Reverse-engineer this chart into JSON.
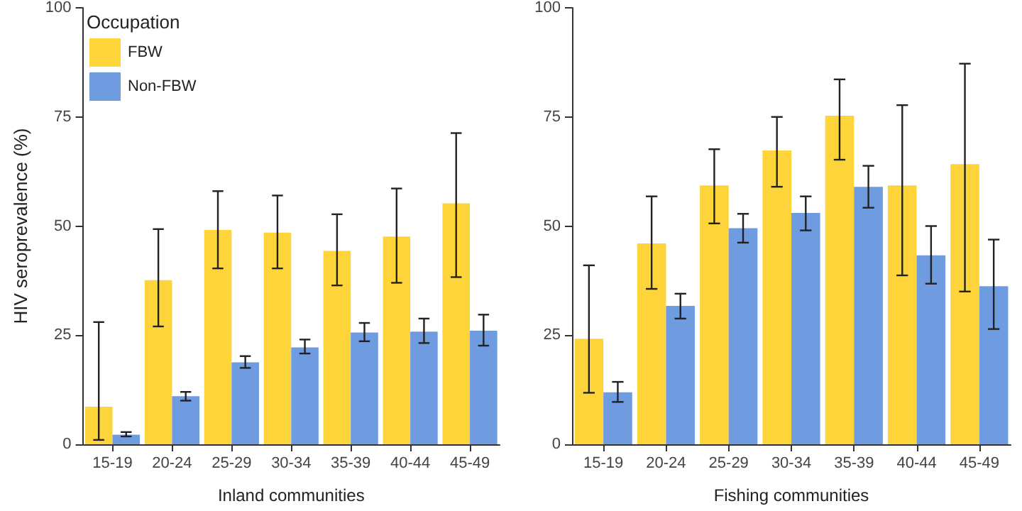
{
  "chart_data": [
    {
      "type": "bar",
      "xlabel": "Inland communities",
      "ylabel": "HIV seroprevalence (%)",
      "legend_title": "Occupation",
      "legend": "top left",
      "grid": false,
      "categories": [
        "15-19",
        "20-24",
        "25-29",
        "30-34",
        "35-39",
        "40-44",
        "45-49"
      ],
      "ylim": [
        0,
        100
      ],
      "yticks": [
        0,
        25,
        50,
        75,
        100
      ],
      "series": [
        {
          "name": "FBW",
          "color": "#fdd53a",
          "values": [
            8.6,
            37.6,
            49.1,
            48.5,
            44.3,
            47.6,
            55.2
          ],
          "errors": [
            [
              1,
              28
            ],
            [
              27,
              49.3
            ],
            [
              40.3,
              58
            ],
            [
              40.3,
              57
            ],
            [
              36.4,
              52.7
            ],
            [
              37,
              58.6
            ],
            [
              38.3,
              71.3
            ]
          ]
        },
        {
          "name": "Non-FBW",
          "color": "#6f9be0",
          "values": [
            2.2,
            11,
            18.8,
            22.2,
            25.6,
            25.8,
            26
          ],
          "errors": [
            [
              1.8,
              2.8
            ],
            [
              10,
              12
            ],
            [
              17.5,
              20.2
            ],
            [
              20.8,
              24
            ],
            [
              23.6,
              27.8
            ],
            [
              23.2,
              28.8
            ],
            [
              22.6,
              29.7
            ]
          ]
        }
      ]
    },
    {
      "type": "bar",
      "xlabel": "Fishing communities",
      "legend": false,
      "grid": false,
      "categories": [
        "15-19",
        "20-24",
        "25-29",
        "30-34",
        "35-39",
        "40-44",
        "45-49"
      ],
      "ylim": [
        0,
        100
      ],
      "yticks": [
        0,
        25,
        50,
        75,
        100
      ],
      "series": [
        {
          "color": "#fdd53a",
          "values": [
            24.2,
            46,
            59.3,
            67.3,
            75.3,
            59.3,
            64.2
          ],
          "errors": [
            [
              11.8,
              41
            ],
            [
              35.6,
              56.8
            ],
            [
              50.6,
              67.6
            ],
            [
              59,
              75
            ],
            [
              65.2,
              83.6
            ],
            [
              38.7,
              77.7
            ],
            [
              35,
              87.2
            ]
          ]
        },
        {
          "color": "#6f9be0",
          "values": [
            11.9,
            31.7,
            49.5,
            53,
            59,
            43.3,
            36.2
          ],
          "errors": [
            [
              9.7,
              14.3
            ],
            [
              28.8,
              34.5
            ],
            [
              46.2,
              52.8
            ],
            [
              49,
              56.8
            ],
            [
              54.2,
              63.8
            ],
            [
              36.8,
              50
            ],
            [
              26.4,
              46.9
            ]
          ]
        }
      ]
    }
  ]
}
